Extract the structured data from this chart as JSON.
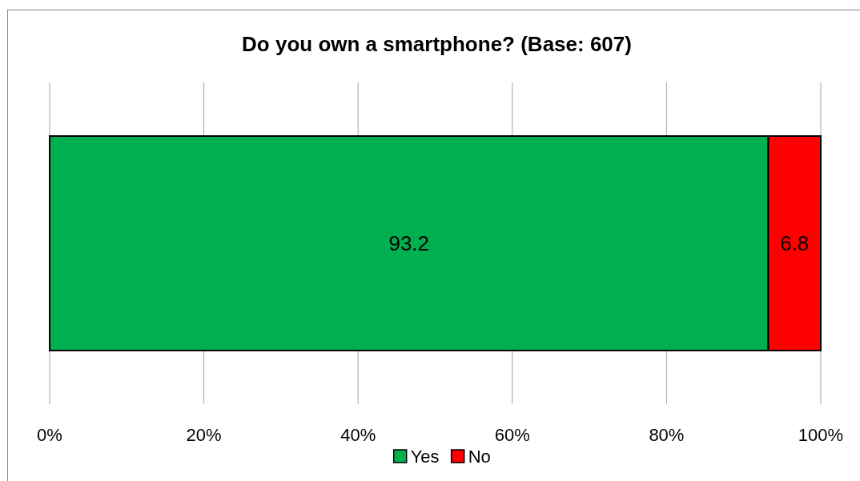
{
  "chart_data": {
    "type": "bar",
    "orientation": "horizontal",
    "stacked": true,
    "title": "Do you own a smartphone? (Base: 607)",
    "categories": [
      null
    ],
    "series": [
      {
        "name": "Yes",
        "color": "#00b050",
        "values": [
          93.2
        ]
      },
      {
        "name": "No",
        "color": "#ff0000",
        "values": [
          6.8
        ]
      }
    ],
    "xlim": [
      0,
      100
    ],
    "xticks": [
      {
        "value": 0,
        "label": "0%"
      },
      {
        "value": 20,
        "label": "20%"
      },
      {
        "value": 40,
        "label": "40%"
      },
      {
        "value": 60,
        "label": "60%"
      },
      {
        "value": 80,
        "label": "80%"
      },
      {
        "value": 100,
        "label": "100%"
      }
    ],
    "grid": "x",
    "legend": "bottom",
    "data_labels": true
  }
}
